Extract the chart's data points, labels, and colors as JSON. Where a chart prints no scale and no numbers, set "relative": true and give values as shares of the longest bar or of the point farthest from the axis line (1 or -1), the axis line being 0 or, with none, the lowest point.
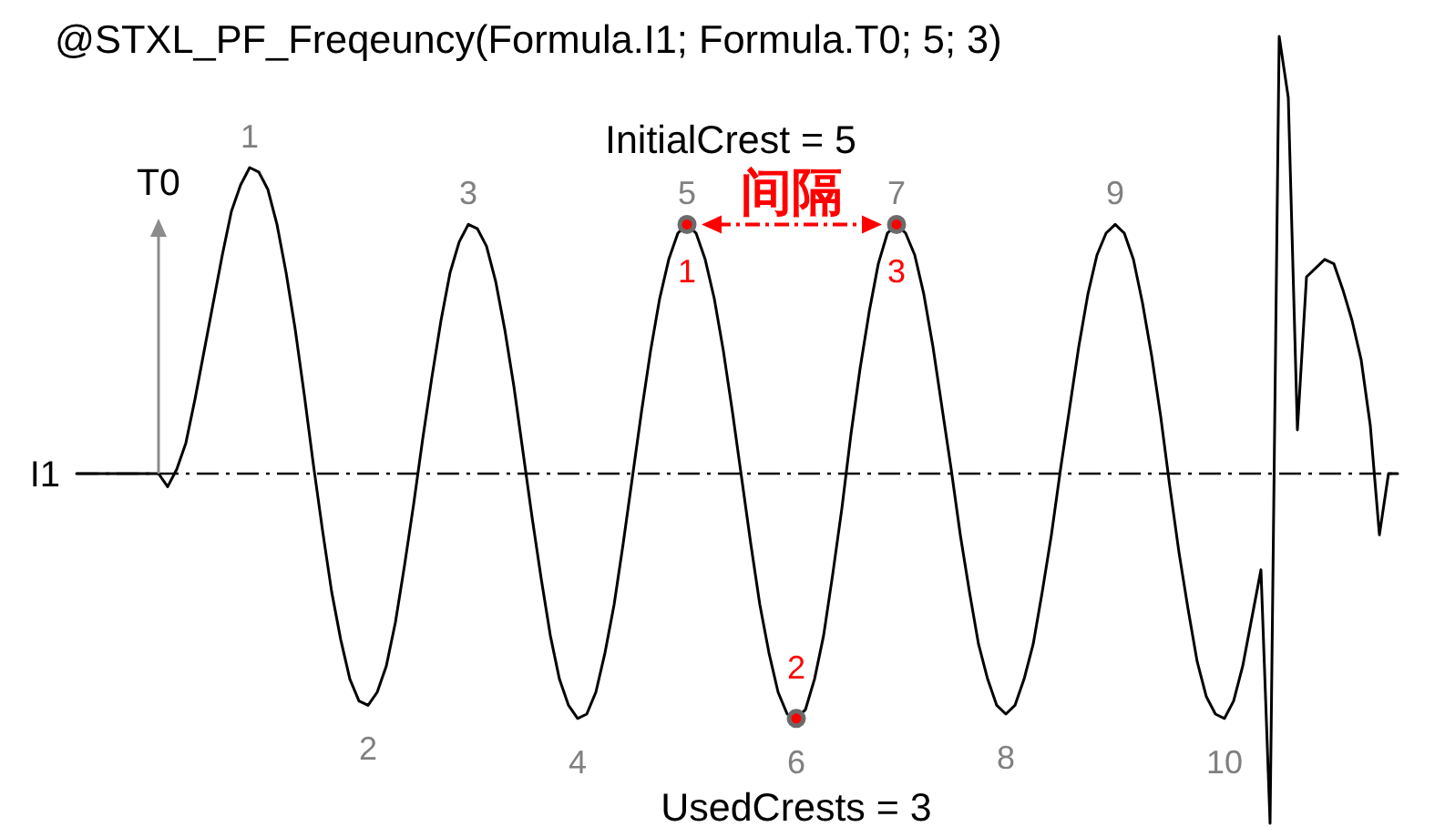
{
  "chart_data": {
    "type": "line",
    "title": "@STXL_PF_Freqeuncy(Formula.I1; Formula.T0; 5; 3)",
    "relative": true,
    "categories": [
      null,
      null,
      null,
      null,
      null,
      null,
      null,
      null,
      null,
      null,
      null,
      null,
      null,
      null,
      null,
      null,
      null,
      null,
      null,
      "1",
      null,
      null,
      null,
      null,
      null,
      null,
      null,
      null,
      null,
      null,
      null,
      null,
      "2",
      null,
      null,
      null,
      null,
      null,
      null,
      null,
      null,
      null,
      null,
      "3",
      null,
      null,
      null,
      null,
      null,
      null,
      null,
      null,
      null,
      null,
      null,
      "4",
      null,
      null,
      null,
      null,
      null,
      null,
      null,
      null,
      null,
      null,
      null,
      "5",
      null,
      null,
      null,
      null,
      null,
      null,
      null,
      null,
      null,
      null,
      null,
      "6",
      null,
      null,
      null,
      null,
      null,
      null,
      null,
      null,
      null,
      null,
      "7",
      null,
      null,
      null,
      null,
      null,
      null,
      null,
      null,
      null,
      null,
      null,
      "8",
      null,
      null,
      null,
      null,
      null,
      null,
      null,
      null,
      null,
      null,
      null,
      "9",
      null,
      null,
      null,
      null,
      null,
      null,
      null,
      null,
      null,
      null,
      null,
      "10",
      null,
      null,
      null,
      null,
      null,
      null,
      null,
      null,
      null,
      null,
      null,
      null,
      null,
      null,
      null,
      null,
      null,
      null,
      null
    ],
    "series": [
      {
        "color": "#000000",
        "values": [
          0,
          0,
          0,
          0,
          0,
          0,
          0,
          0,
          0,
          0,
          -0.03,
          0.01,
          0.07,
          0.17,
          0.28,
          0.39,
          0.5,
          0.6,
          0.66,
          0.7,
          0.69,
          0.65,
          0.57,
          0.46,
          0.33,
          0.18,
          0.02,
          -0.13,
          -0.27,
          -0.38,
          -0.47,
          -0.52,
          -0.53,
          -0.5,
          -0.44,
          -0.34,
          -0.21,
          -0.07,
          0.08,
          0.22,
          0.35,
          0.46,
          0.53,
          0.57,
          0.56,
          0.52,
          0.44,
          0.33,
          0.2,
          0.05,
          -0.1,
          -0.24,
          -0.37,
          -0.47,
          -0.53,
          -0.56,
          -0.55,
          -0.5,
          -0.41,
          -0.3,
          -0.16,
          -0.01,
          0.14,
          0.28,
          0.4,
          0.49,
          0.55,
          0.57,
          0.55,
          0.49,
          0.4,
          0.28,
          0.14,
          -0.01,
          -0.16,
          -0.3,
          -0.41,
          -0.5,
          -0.55,
          -0.56,
          -0.54,
          -0.47,
          -0.37,
          -0.23,
          -0.08,
          0.09,
          0.24,
          0.37,
          0.48,
          0.55,
          0.57,
          0.55,
          0.5,
          0.41,
          0.29,
          0.15,
          0.01,
          -0.14,
          -0.27,
          -0.39,
          -0.47,
          -0.53,
          -0.55,
          -0.53,
          -0.47,
          -0.39,
          -0.27,
          -0.14,
          0.01,
          0.15,
          0.29,
          0.41,
          0.5,
          0.55,
          0.57,
          0.55,
          0.49,
          0.39,
          0.27,
          0.13,
          -0.03,
          -0.18,
          -0.31,
          -0.43,
          -0.51,
          -0.55,
          -0.56,
          -0.52,
          -0.44,
          -0.33,
          -0.22,
          -0.8,
          1.0,
          0.86,
          0.1,
          0.45,
          0.47,
          0.49,
          0.48,
          0.42,
          0.35,
          0.26,
          0.11,
          -0.14,
          0,
          0
        ]
      },
      {
        "type": "scatter",
        "color": "#ff0000",
        "marker": "circle",
        "values": [
          null,
          null,
          null,
          null,
          null,
          null,
          null,
          null,
          null,
          null,
          null,
          null,
          null,
          null,
          null,
          null,
          null,
          null,
          null,
          null,
          null,
          null,
          null,
          null,
          null,
          null,
          null,
          null,
          null,
          null,
          null,
          null,
          null,
          null,
          null,
          null,
          null,
          null,
          null,
          null,
          null,
          null,
          null,
          null,
          null,
          null,
          null,
          null,
          null,
          null,
          null,
          null,
          null,
          null,
          null,
          null,
          null,
          null,
          null,
          null,
          null,
          null,
          null,
          null,
          null,
          null,
          null,
          0.57,
          null,
          null,
          null,
          null,
          null,
          null,
          null,
          null,
          null,
          null,
          null,
          -0.56,
          null,
          null,
          null,
          null,
          null,
          null,
          null,
          null,
          null,
          null,
          0.57,
          null,
          null,
          null,
          null,
          null,
          null,
          null,
          null,
          null,
          null,
          null,
          null,
          null,
          null,
          null,
          null,
          null,
          null,
          null,
          null,
          null,
          null,
          null,
          null,
          null,
          null,
          null,
          null,
          null,
          null,
          null,
          null,
          null,
          null,
          null,
          null,
          null,
          null,
          null,
          null,
          null,
          null,
          null,
          null,
          null,
          null,
          null,
          null,
          null,
          null,
          null,
          null,
          null,
          null,
          null
        ]
      }
    ],
    "ref_lines": [
      {
        "axis": "y",
        "value": 0,
        "label": "I1",
        "color": "#000000",
        "line_style": "dashed"
      }
    ],
    "annotations": [
      "InitialCrest = 5",
      "UsedCrests = 3",
      "间隔",
      "T0",
      {
        "text": "1",
        "x": "5",
        "y": 0.57
      },
      {
        "text": "2",
        "x": "6",
        "y": -0.56
      },
      {
        "text": "3",
        "x": "7",
        "y": 0.57
      }
    ]
  }
}
